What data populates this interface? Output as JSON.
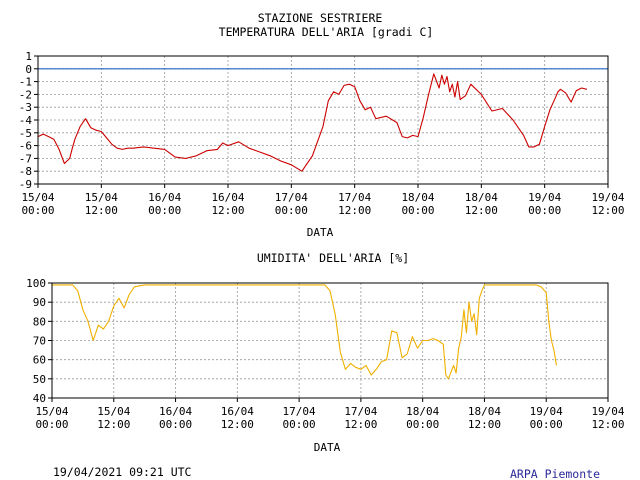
{
  "header": {
    "line1": "STAZIONE SESTRIERE",
    "line2": "TEMPERATURA DELL'ARIA [gradi C]"
  },
  "footer": {
    "timestamp": "19/04/2021 09:21 UTC",
    "brand": "ARPA Piemonte"
  },
  "colors": {
    "temperature": "#cc0000",
    "humidity": "#f0b000",
    "zero_line": "#2266cc",
    "grid": "#999999",
    "axis": "#000000"
  },
  "chart_data": [
    {
      "type": "line",
      "title": "TEMPERATURA DELL'ARIA [gradi C]",
      "xlabel": "DATA",
      "ylabel": "",
      "ylim": [
        -9,
        1
      ],
      "yticks": [
        1,
        0,
        -1,
        -2,
        -3,
        -4,
        -5,
        -6,
        -7,
        -8,
        -9
      ],
      "xticks": [
        [
          "15/04",
          "00:00"
        ],
        [
          "15/04",
          "12:00"
        ],
        [
          "16/04",
          "00:00"
        ],
        [
          "16/04",
          "12:00"
        ],
        [
          "17/04",
          "00:00"
        ],
        [
          "17/04",
          "12:00"
        ],
        [
          "18/04",
          "00:00"
        ],
        [
          "18/04",
          "12:00"
        ],
        [
          "19/04",
          "00:00"
        ],
        [
          "19/04",
          "12:00"
        ]
      ],
      "x_hours_range": [
        0,
        108
      ],
      "grid": true,
      "reference_line": 0,
      "series": [
        {
          "x": [
            0,
            1,
            2,
            3,
            4,
            5,
            6,
            6.5,
            7,
            8,
            9,
            10,
            11,
            12,
            13,
            14,
            15,
            16,
            17,
            18,
            20,
            22,
            24,
            26,
            28,
            30,
            32,
            34,
            35,
            36,
            38,
            40,
            42,
            44,
            46,
            48,
            50,
            52,
            54,
            55,
            56,
            57,
            58,
            59,
            60,
            61,
            62,
            63,
            64,
            66,
            68,
            69,
            70,
            71,
            72,
            73,
            74,
            75,
            76,
            76.5,
            77,
            77.5,
            78,
            78.5,
            79,
            79.5,
            80,
            81,
            82,
            84,
            86,
            88,
            90,
            92,
            93,
            94,
            95,
            96,
            97,
            98,
            98.5,
            99,
            100,
            101,
            102,
            103,
            104
          ],
          "y": [
            -5.3,
            -5.1,
            -5.3,
            -5.5,
            -6.3,
            -7.4,
            -7,
            -6.2,
            -5.5,
            -4.5,
            -3.9,
            -4.6,
            -4.8,
            -4.9,
            -5.4,
            -5.9,
            -6.2,
            -6.3,
            -6.2,
            -6.2,
            -6.1,
            -6.2,
            -6.3,
            -6.9,
            -7.0,
            -6.8,
            -6.4,
            -6.3,
            -5.8,
            -6.0,
            -5.7,
            -6.2,
            -6.5,
            -6.8,
            -7.2,
            -7.5,
            -8.0,
            -6.8,
            -4.5,
            -2.5,
            -1.8,
            -2.0,
            -1.3,
            -1.2,
            -1.4,
            -2.5,
            -3.2,
            -3.0,
            -3.9,
            -3.7,
            -4.2,
            -5.3,
            -5.4,
            -5.2,
            -5.3,
            -3.8,
            -2.0,
            -0.4,
            -1.5,
            -0.5,
            -1.2,
            -0.6,
            -1.8,
            -1.2,
            -2.2,
            -1.0,
            -2.4,
            -2.1,
            -1.2,
            -2.0,
            -3.3,
            -3.1,
            -4.0,
            -5.2,
            -6.1,
            -6.1,
            -5.9,
            -4.5,
            -3.2,
            -2.3,
            -1.8,
            -1.6,
            -1.9,
            -2.6,
            -1.7,
            -1.5,
            -1.6
          ]
        }
      ]
    },
    {
      "type": "line",
      "title": "UMIDITA' DELL'ARIA [%]",
      "xlabel": "DATA",
      "ylabel": "",
      "ylim": [
        40,
        100
      ],
      "yticks": [
        100,
        90,
        80,
        70,
        60,
        50,
        40
      ],
      "xticks": [
        [
          "15/04",
          "00:00"
        ],
        [
          "15/04",
          "12:00"
        ],
        [
          "16/04",
          "00:00"
        ],
        [
          "16/04",
          "12:00"
        ],
        [
          "17/04",
          "00:00"
        ],
        [
          "17/04",
          "12:00"
        ],
        [
          "18/04",
          "00:00"
        ],
        [
          "18/04",
          "12:00"
        ],
        [
          "19/04",
          "00:00"
        ],
        [
          "19/04",
          "12:00"
        ]
      ],
      "x_hours_range": [
        0,
        108
      ],
      "grid": true,
      "series": [
        {
          "x": [
            0,
            2,
            4,
            5,
            6,
            7,
            8,
            9,
            10,
            11,
            12,
            13,
            14,
            15,
            16,
            18,
            20,
            24,
            30,
            36,
            42,
            48,
            50,
            53,
            54,
            55,
            56,
            57,
            58,
            59,
            60,
            61,
            62,
            63,
            64,
            65,
            66,
            67,
            68,
            69,
            70,
            71,
            72,
            73,
            74,
            75,
            76,
            76.5,
            77,
            78,
            78.5,
            79,
            79.5,
            80,
            80.5,
            81,
            81.5,
            82,
            82.5,
            83,
            83.5,
            84,
            84.5,
            85,
            86,
            88,
            90,
            92,
            94,
            95,
            96,
            96.5,
            97,
            97.5,
            98
          ],
          "y": [
            99,
            99,
            99,
            96,
            86,
            80,
            70,
            78,
            76,
            80,
            88,
            92,
            87,
            94,
            98,
            99,
            99,
            99,
            99,
            99,
            99,
            99,
            99,
            99,
            96,
            84,
            64,
            55,
            58,
            56,
            55,
            57,
            52,
            55,
            59,
            60,
            75,
            74,
            61,
            63,
            72,
            66,
            70,
            70,
            71,
            70,
            68,
            52,
            50,
            57,
            53,
            66,
            72,
            86,
            74,
            90,
            80,
            84,
            73,
            92,
            96,
            99,
            99,
            99,
            99,
            99,
            99,
            99,
            99,
            98,
            95,
            80,
            70,
            65,
            57
          ]
        }
      ]
    }
  ]
}
